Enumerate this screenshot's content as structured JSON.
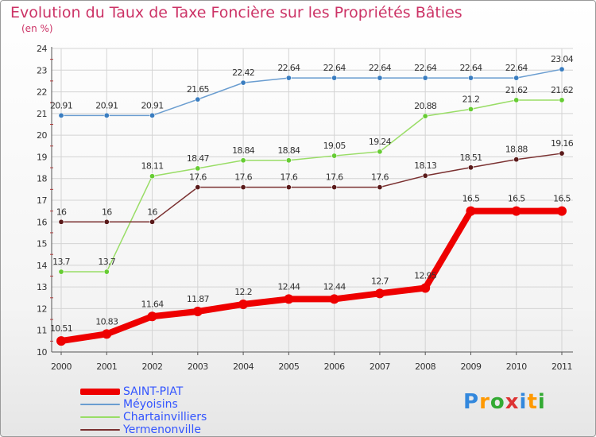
{
  "header": {
    "title": "Evolution du Taux de Taxe Foncière sur les Propriétés Bâties",
    "subtitle": "(en %)"
  },
  "logo": {
    "text": "Proxiti",
    "colors": [
      "#3388dd",
      "#ff9900",
      "#33aa33",
      "#dd3333",
      "#3388dd",
      "#ff9900",
      "#33aa33"
    ]
  },
  "chart_data": {
    "type": "line",
    "x": [
      "2000",
      "2001",
      "2002",
      "2003",
      "2004",
      "2005",
      "2006",
      "2007",
      "2008",
      "2009",
      "2010",
      "2011"
    ],
    "ylim": [
      10,
      24
    ],
    "yticks": [
      10,
      11,
      12,
      13,
      14,
      15,
      16,
      17,
      18,
      19,
      20,
      21,
      22,
      23,
      24
    ],
    "grid": true,
    "legend_position": "bottom-left",
    "series": [
      {
        "name": "SAINT-PIAT",
        "color": "#ee0000",
        "marker": "#ee0000",
        "width": 8,
        "bold": true,
        "values": [
          10.51,
          10.83,
          11.64,
          11.87,
          12.2,
          12.44,
          12.44,
          12.7,
          12.95,
          16.5,
          16.5,
          16.5
        ],
        "labels": [
          "10.51",
          "10.83",
          "11.64",
          "11.87",
          "12.2",
          "12.44",
          "12.44",
          "12.7",
          "12.95",
          "16.5",
          "16.5",
          "16.5"
        ]
      },
      {
        "name": "Méyoisins",
        "color": "#6a9dd0",
        "marker": "#3a7dc0",
        "width": 1.5,
        "values": [
          20.91,
          20.91,
          20.91,
          21.65,
          22.42,
          22.64,
          22.64,
          22.64,
          22.64,
          22.64,
          22.64,
          23.04
        ],
        "labels": [
          "20.91",
          "20.91",
          "20.91",
          "21.65",
          "22.42",
          "22.64",
          "22.64",
          "22.64",
          "22.64",
          "22.64",
          "22.64",
          "23.04"
        ]
      },
      {
        "name": "Chartainvilliers",
        "color": "#99dd66",
        "marker": "#66cc33",
        "width": 1.5,
        "values": [
          13.7,
          13.7,
          18.11,
          18.47,
          18.84,
          18.84,
          19.05,
          19.24,
          20.88,
          21.2,
          21.62,
          21.62
        ],
        "labels": [
          "13.7",
          "13.7",
          "18.11",
          "18.47",
          "18.84",
          "18.84",
          "19.05",
          "19.24",
          "20.88",
          "21.2",
          "21.62",
          "21.62"
        ]
      },
      {
        "name": "Yermenonville",
        "color": "#7a3030",
        "marker": "#5a1a1a",
        "width": 1.5,
        "values": [
          16,
          16,
          16,
          17.6,
          17.6,
          17.6,
          17.6,
          17.6,
          18.13,
          18.51,
          18.88,
          19.16
        ],
        "labels": [
          "16",
          "16",
          "16",
          "17.6",
          "17.6",
          "17.6",
          "17.6",
          "17.6",
          "18.13",
          "18.51",
          "18.88",
          "19.16"
        ]
      }
    ]
  }
}
